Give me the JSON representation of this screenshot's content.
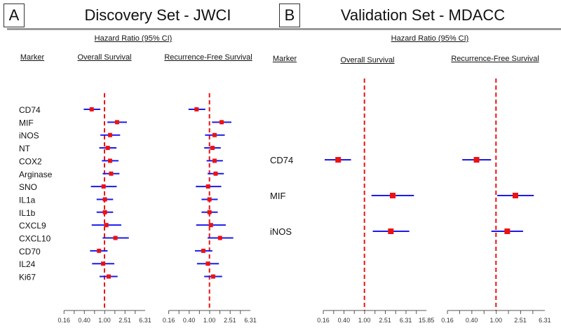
{
  "panels": [
    {
      "letter": "A",
      "title": "Discovery Set - JWCI",
      "hr_label": "Hazard Ratio (95% CI)",
      "marker_header": "Marker",
      "os_header": "Overall Survival",
      "rfs_header": "Recurrence-Free Survival"
    },
    {
      "letter": "B",
      "title": "Validation Set - MDACC",
      "hr_label": "Hazard Ratio (95% CI)",
      "marker_header": "Marker",
      "os_header": "Overall Survival",
      "rfs_header": "Recurrence-Free Survival"
    }
  ],
  "colors": {
    "point": "#ee1111",
    "ci": "#1a1aee",
    "reference": "#ee1111",
    "axis": "#555555"
  },
  "chart_data": [
    {
      "type": "forest",
      "panel": "A",
      "endpoint": "Overall Survival",
      "scale": "log",
      "reference": 1.0,
      "ticks": [
        "0.16",
        "0.40",
        "1.00",
        "2.51",
        "6.31"
      ],
      "markers": [
        "CD74",
        "MIF",
        "iNOS",
        "NT",
        "COX2",
        "Arginase",
        "SNO",
        "IL1a",
        "IL1b",
        "CXCL9",
        "CXCL10",
        "CD70",
        "IL24",
        "Ki67"
      ],
      "hr": [
        0.56,
        1.77,
        1.29,
        1.16,
        1.29,
        1.35,
        0.96,
        1.02,
        1.02,
        1.09,
        1.64,
        0.78,
        0.94,
        1.21
      ],
      "lower": [
        0.39,
        1.14,
        0.83,
        0.79,
        0.89,
        0.92,
        0.54,
        0.7,
        0.7,
        0.56,
        0.92,
        0.52,
        0.57,
        0.8
      ],
      "upper": [
        0.83,
        2.76,
        2.03,
        1.72,
        1.89,
        1.97,
        1.74,
        1.48,
        1.48,
        2.14,
        3.01,
        1.15,
        1.56,
        1.81
      ]
    },
    {
      "type": "forest",
      "panel": "A",
      "endpoint": "Recurrence-Free Survival",
      "scale": "log",
      "reference": 1.0,
      "ticks": [
        "0.16",
        "0.40",
        "1.00",
        "2.51",
        "6.31"
      ],
      "markers": [
        "CD74",
        "MIF",
        "iNOS",
        "NT",
        "COX2",
        "Arginase",
        "SNO",
        "IL1a",
        "IL1b",
        "CXCL9",
        "CXCL10",
        "CD70",
        "IL24",
        "Ki67"
      ],
      "hr": [
        0.56,
        1.73,
        1.26,
        1.15,
        1.26,
        1.32,
        0.94,
        1.0,
        1.0,
        1.07,
        1.61,
        0.76,
        0.93,
        1.18
      ],
      "lower": [
        0.39,
        1.12,
        0.82,
        0.79,
        0.88,
        0.92,
        0.54,
        0.7,
        0.7,
        0.55,
        0.92,
        0.52,
        0.57,
        0.79
      ],
      "upper": [
        0.83,
        2.68,
        1.99,
        1.66,
        1.83,
        1.91,
        1.7,
        1.45,
        1.45,
        2.08,
        2.92,
        1.14,
        1.53,
        1.77
      ]
    },
    {
      "type": "forest",
      "panel": "B",
      "endpoint": "Overall Survival",
      "scale": "log",
      "reference": 1.0,
      "ticks": [
        "0.16",
        "0.40",
        "1.00",
        "2.51",
        "6.31",
        "15.85"
      ],
      "markers": [
        "CD74",
        "MIF",
        "iNOS"
      ],
      "hr": [
        0.31,
        3.52,
        3.24
      ],
      "lower": [
        0.17,
        1.37,
        1.45
      ],
      "upper": [
        0.55,
        9.08,
        7.38
      ]
    },
    {
      "type": "forest",
      "panel": "B",
      "endpoint": "Recurrence-Free Survival",
      "scale": "log",
      "reference": 1.0,
      "ticks": [
        "0.16",
        "0.40",
        "1.00",
        "2.51",
        "6.31"
      ],
      "markers": [
        "CD74",
        "MIF",
        "iNOS"
      ],
      "hr": [
        0.48,
        2.08,
        1.53
      ],
      "lower": [
        0.28,
        1.05,
        0.84
      ],
      "upper": [
        0.83,
        4.17,
        2.78
      ]
    }
  ]
}
